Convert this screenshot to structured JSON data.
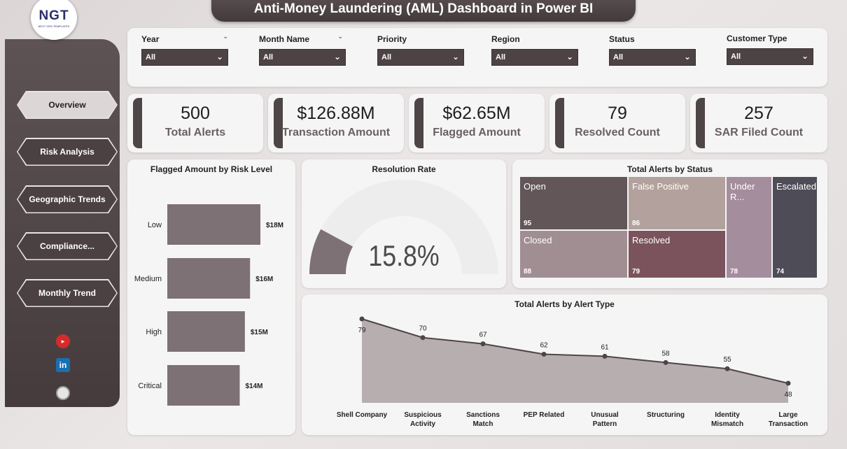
{
  "title": "Anti-Money Laundering (AML) Dashboard in Power BI",
  "logo": {
    "main": "NGT",
    "sub": "NEXT GEN TEMPLATES"
  },
  "nav": [
    {
      "label": "Overview",
      "active": true
    },
    {
      "label": "Risk Analysis",
      "active": false
    },
    {
      "label": "Geographic Trends",
      "active": false
    },
    {
      "label": "Compliance...",
      "active": false
    },
    {
      "label": "Monthly Trend",
      "active": false
    }
  ],
  "social": {
    "youtube": "youtube-icon",
    "linkedin": "linkedin-icon",
    "linkedin_text": "in",
    "globe": "globe-icon"
  },
  "filters": [
    {
      "label": "Year",
      "value": "All"
    },
    {
      "label": "Month Name",
      "value": "All"
    },
    {
      "label": "Priority",
      "value": "All"
    },
    {
      "label": "Region",
      "value": "All"
    },
    {
      "label": "Status",
      "value": "All"
    },
    {
      "label": "Customer Type",
      "value": "All"
    }
  ],
  "kpis": [
    {
      "value": "500",
      "label": "Total Alerts"
    },
    {
      "value": "$126.88M",
      "label": "Transaction Amount"
    },
    {
      "value": "$62.65M",
      "label": "Flagged Amount"
    },
    {
      "value": "79",
      "label": "Resolved Count"
    },
    {
      "value": "257",
      "label": "SAR Filed Count"
    }
  ],
  "risk_chart": {
    "title": "Flagged Amount by Risk Level",
    "categories": [
      "Low",
      "Medium",
      "High",
      "Critical"
    ],
    "values": [
      18,
      16,
      15,
      14
    ],
    "labels": [
      "$18M",
      "$16M",
      "$15M",
      "$14M"
    ],
    "color": "#7d7176"
  },
  "gauge": {
    "title": "Resolution Rate",
    "value": "15.8%",
    "fraction": 0.158,
    "color": "#7d7176",
    "track": "#ededed"
  },
  "treemap": {
    "title": "Total Alerts by Status",
    "cells": [
      {
        "name": "Open",
        "count": "95",
        "color": "#625658"
      },
      {
        "name": "False Positive",
        "count": "86",
        "color": "#b2a19c"
      },
      {
        "name": "Under R...",
        "count": "78",
        "color": "#a48d9c"
      },
      {
        "name": "Escalated",
        "count": "74",
        "color": "#4e4c57"
      },
      {
        "name": "Closed",
        "count": "88",
        "color": "#a08e93"
      },
      {
        "name": "Resolved",
        "count": "79",
        "color": "#7a535d"
      }
    ]
  },
  "chart_data": {
    "type": "area",
    "title": "Total Alerts by Alert Type",
    "categories": [
      "Shell Company",
      "Suspicious Activity",
      "Sanctions Match",
      "PEP Related",
      "Unusual Pattern",
      "Structuring",
      "Identity Mismatch",
      "Large Transaction"
    ],
    "category_lines": [
      [
        "Shell Company"
      ],
      [
        "Suspicious",
        "Activity"
      ],
      [
        "Sanctions",
        "Match"
      ],
      [
        "PEP Related"
      ],
      [
        "Unusual",
        "Pattern"
      ],
      [
        "Structuring"
      ],
      [
        "Identity",
        "Mismatch"
      ],
      [
        "Large",
        "Transaction"
      ]
    ],
    "values": [
      79,
      70,
      67,
      62,
      61,
      58,
      55,
      48
    ],
    "fill": "#b7aeb0",
    "line": "#4e4546"
  }
}
